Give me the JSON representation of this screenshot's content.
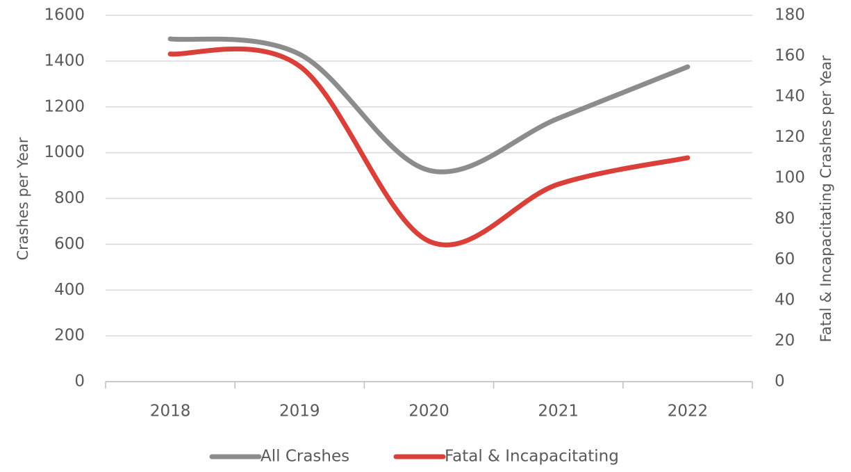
{
  "chart_data": {
    "type": "line",
    "categories": [
      "2018",
      "2019",
      "2020",
      "2021",
      "2022"
    ],
    "y_label": "Crashes per Year",
    "y2_label": "Fatal & Incapacitating Crashes per Year",
    "series": [
      {
        "name": "All Crashes",
        "color": "#8c8c8c",
        "values": [
          1497,
          1430,
          923,
          1150,
          1375
        ]
      },
      {
        "name": "Fatal & Incapacitating",
        "color": "#d9403a",
        "axis": "y2",
        "values": [
          161,
          155,
          69,
          97,
          110
        ]
      }
    ],
    "ylim": [
      0,
      1600
    ],
    "yticks": [
      0,
      200,
      400,
      600,
      800,
      1000,
      1200,
      1400,
      1600
    ],
    "y2lim": [
      0,
      180
    ],
    "y2ticks": [
      0,
      20,
      40,
      60,
      80,
      100,
      120,
      140,
      160,
      180
    ],
    "grid": true,
    "smooth": true,
    "legend": "bottom"
  }
}
